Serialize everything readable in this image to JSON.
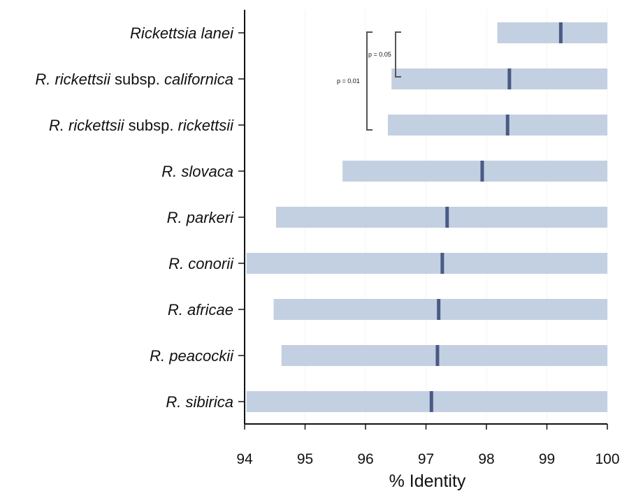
{
  "chart_data": {
    "type": "bar",
    "orientation": "horizontal",
    "subtype": "range-with-median",
    "title": "",
    "xlabel": "% Identity",
    "ylabel": "",
    "xlim": [
      94,
      100
    ],
    "xticks": [
      94,
      95,
      96,
      97,
      98,
      99,
      100
    ],
    "grid": false,
    "categories": [
      {
        "label_parts": [
          {
            "text": "Rickettsia lanei",
            "italic": true
          }
        ]
      },
      {
        "label_parts": [
          {
            "text": "R. rickettsii",
            "italic": true
          },
          {
            "text": " subsp. ",
            "italic": false
          },
          {
            "text": "californica",
            "italic": true
          }
        ]
      },
      {
        "label_parts": [
          {
            "text": "R. rickettsii",
            "italic": true
          },
          {
            "text": " subsp. ",
            "italic": false
          },
          {
            "text": "rickettsii",
            "italic": true
          }
        ]
      },
      {
        "label_parts": [
          {
            "text": "R. slovaca",
            "italic": true
          }
        ]
      },
      {
        "label_parts": [
          {
            "text": "R. parkeri",
            "italic": true
          }
        ]
      },
      {
        "label_parts": [
          {
            "text": "R. conorii",
            "italic": true
          }
        ]
      },
      {
        "label_parts": [
          {
            "text": "R. africae",
            "italic": true
          }
        ]
      },
      {
        "label_parts": [
          {
            "text": "R. peacockii",
            "italic": true
          }
        ]
      },
      {
        "label_parts": [
          {
            "text": "R. sibirica",
            "italic": true
          }
        ]
      }
    ],
    "ranges": [
      {
        "min": 98.18,
        "max": 100,
        "median": 99.23
      },
      {
        "min": 96.43,
        "max": 100,
        "median": 98.38
      },
      {
        "min": 96.37,
        "max": 100,
        "median": 98.35
      },
      {
        "min": 95.62,
        "max": 100,
        "median": 97.93
      },
      {
        "min": 94.52,
        "max": 100,
        "median": 97.35
      },
      {
        "min": 94.03,
        "max": 100,
        "median": 97.27
      },
      {
        "min": 94.48,
        "max": 100,
        "median": 97.21
      },
      {
        "min": 94.61,
        "max": 100,
        "median": 97.19
      },
      {
        "min": 94.03,
        "max": 100,
        "median": 97.09
      }
    ],
    "significance": [
      {
        "from": 0,
        "to": 1,
        "label": "p = 0.05"
      },
      {
        "from": 0,
        "to": 2,
        "label": "p = 0.01"
      }
    ],
    "colors": {
      "range": "#c3d0e1",
      "median": "#495b85",
      "axis": "#111111"
    }
  }
}
